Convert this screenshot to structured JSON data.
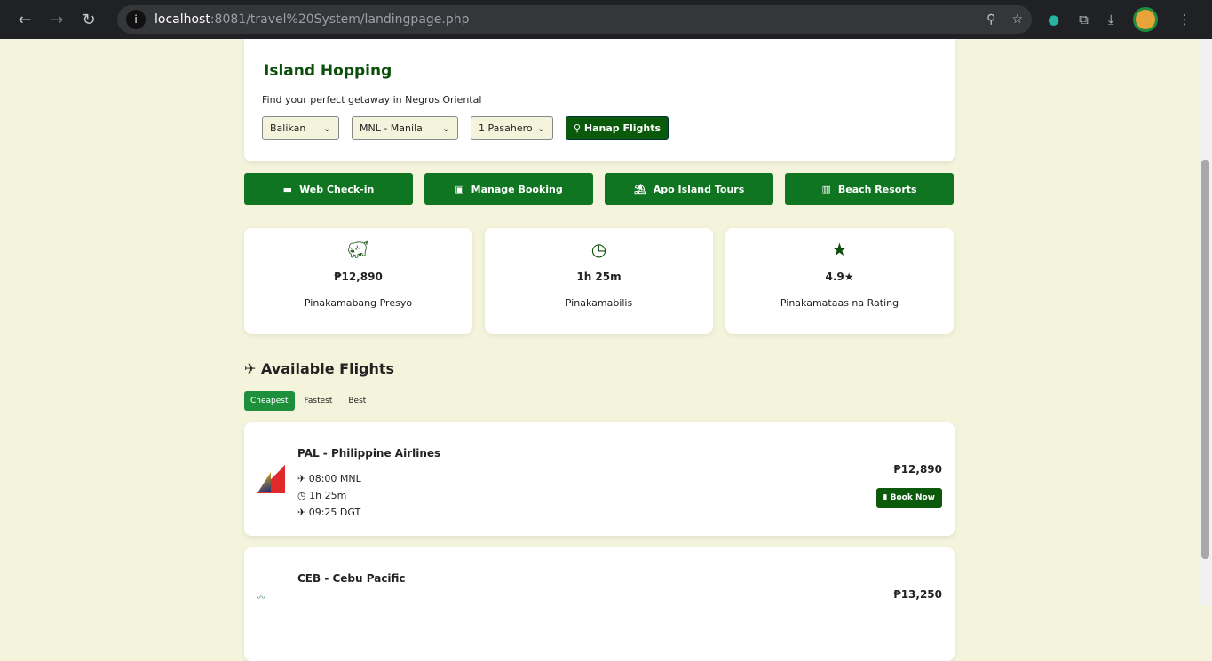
{
  "browser": {
    "host": "localhost",
    "path": ":8081/travel%20System/landingpage.php"
  },
  "search": {
    "title": "Island Hopping",
    "subtitle": "Find your perfect getaway in Negros Oriental",
    "trip_type": "Balikan",
    "origin": "MNL - Manila",
    "passengers": "1 Pasahero",
    "submit": "Hanap Flights"
  },
  "quick": [
    {
      "label": "Web Check-in",
      "icon": "ticket-icon"
    },
    {
      "label": "Manage Booking",
      "icon": "suitcase-icon"
    },
    {
      "label": "Apo Island Tours",
      "icon": "umbrella-beach-icon"
    },
    {
      "label": "Beach Resorts",
      "icon": "hotel-icon"
    }
  ],
  "stats": [
    {
      "value": "₱12,890",
      "label": "Pinakamabang Presyo",
      "icon": "piggy-bank-icon"
    },
    {
      "value": "1h 25m",
      "label": "Pinakamabilis",
      "icon": "clock-icon"
    },
    {
      "value": "4.9★",
      "label": "Pinakamataas na Rating",
      "icon": "star-icon"
    }
  ],
  "flights_title": "Available Flights",
  "sort_tabs": [
    "Cheapest",
    "Fastest",
    "Best"
  ],
  "flights": [
    {
      "name": "PAL - Philippine Airlines",
      "depart": "08:00 MNL",
      "duration": "1h 25m",
      "arrive": "09:25 DGT",
      "price": "₱12,890",
      "book": "Book Now"
    },
    {
      "name": "CEB - Cebu Pacific",
      "price": "₱13,250"
    }
  ]
}
